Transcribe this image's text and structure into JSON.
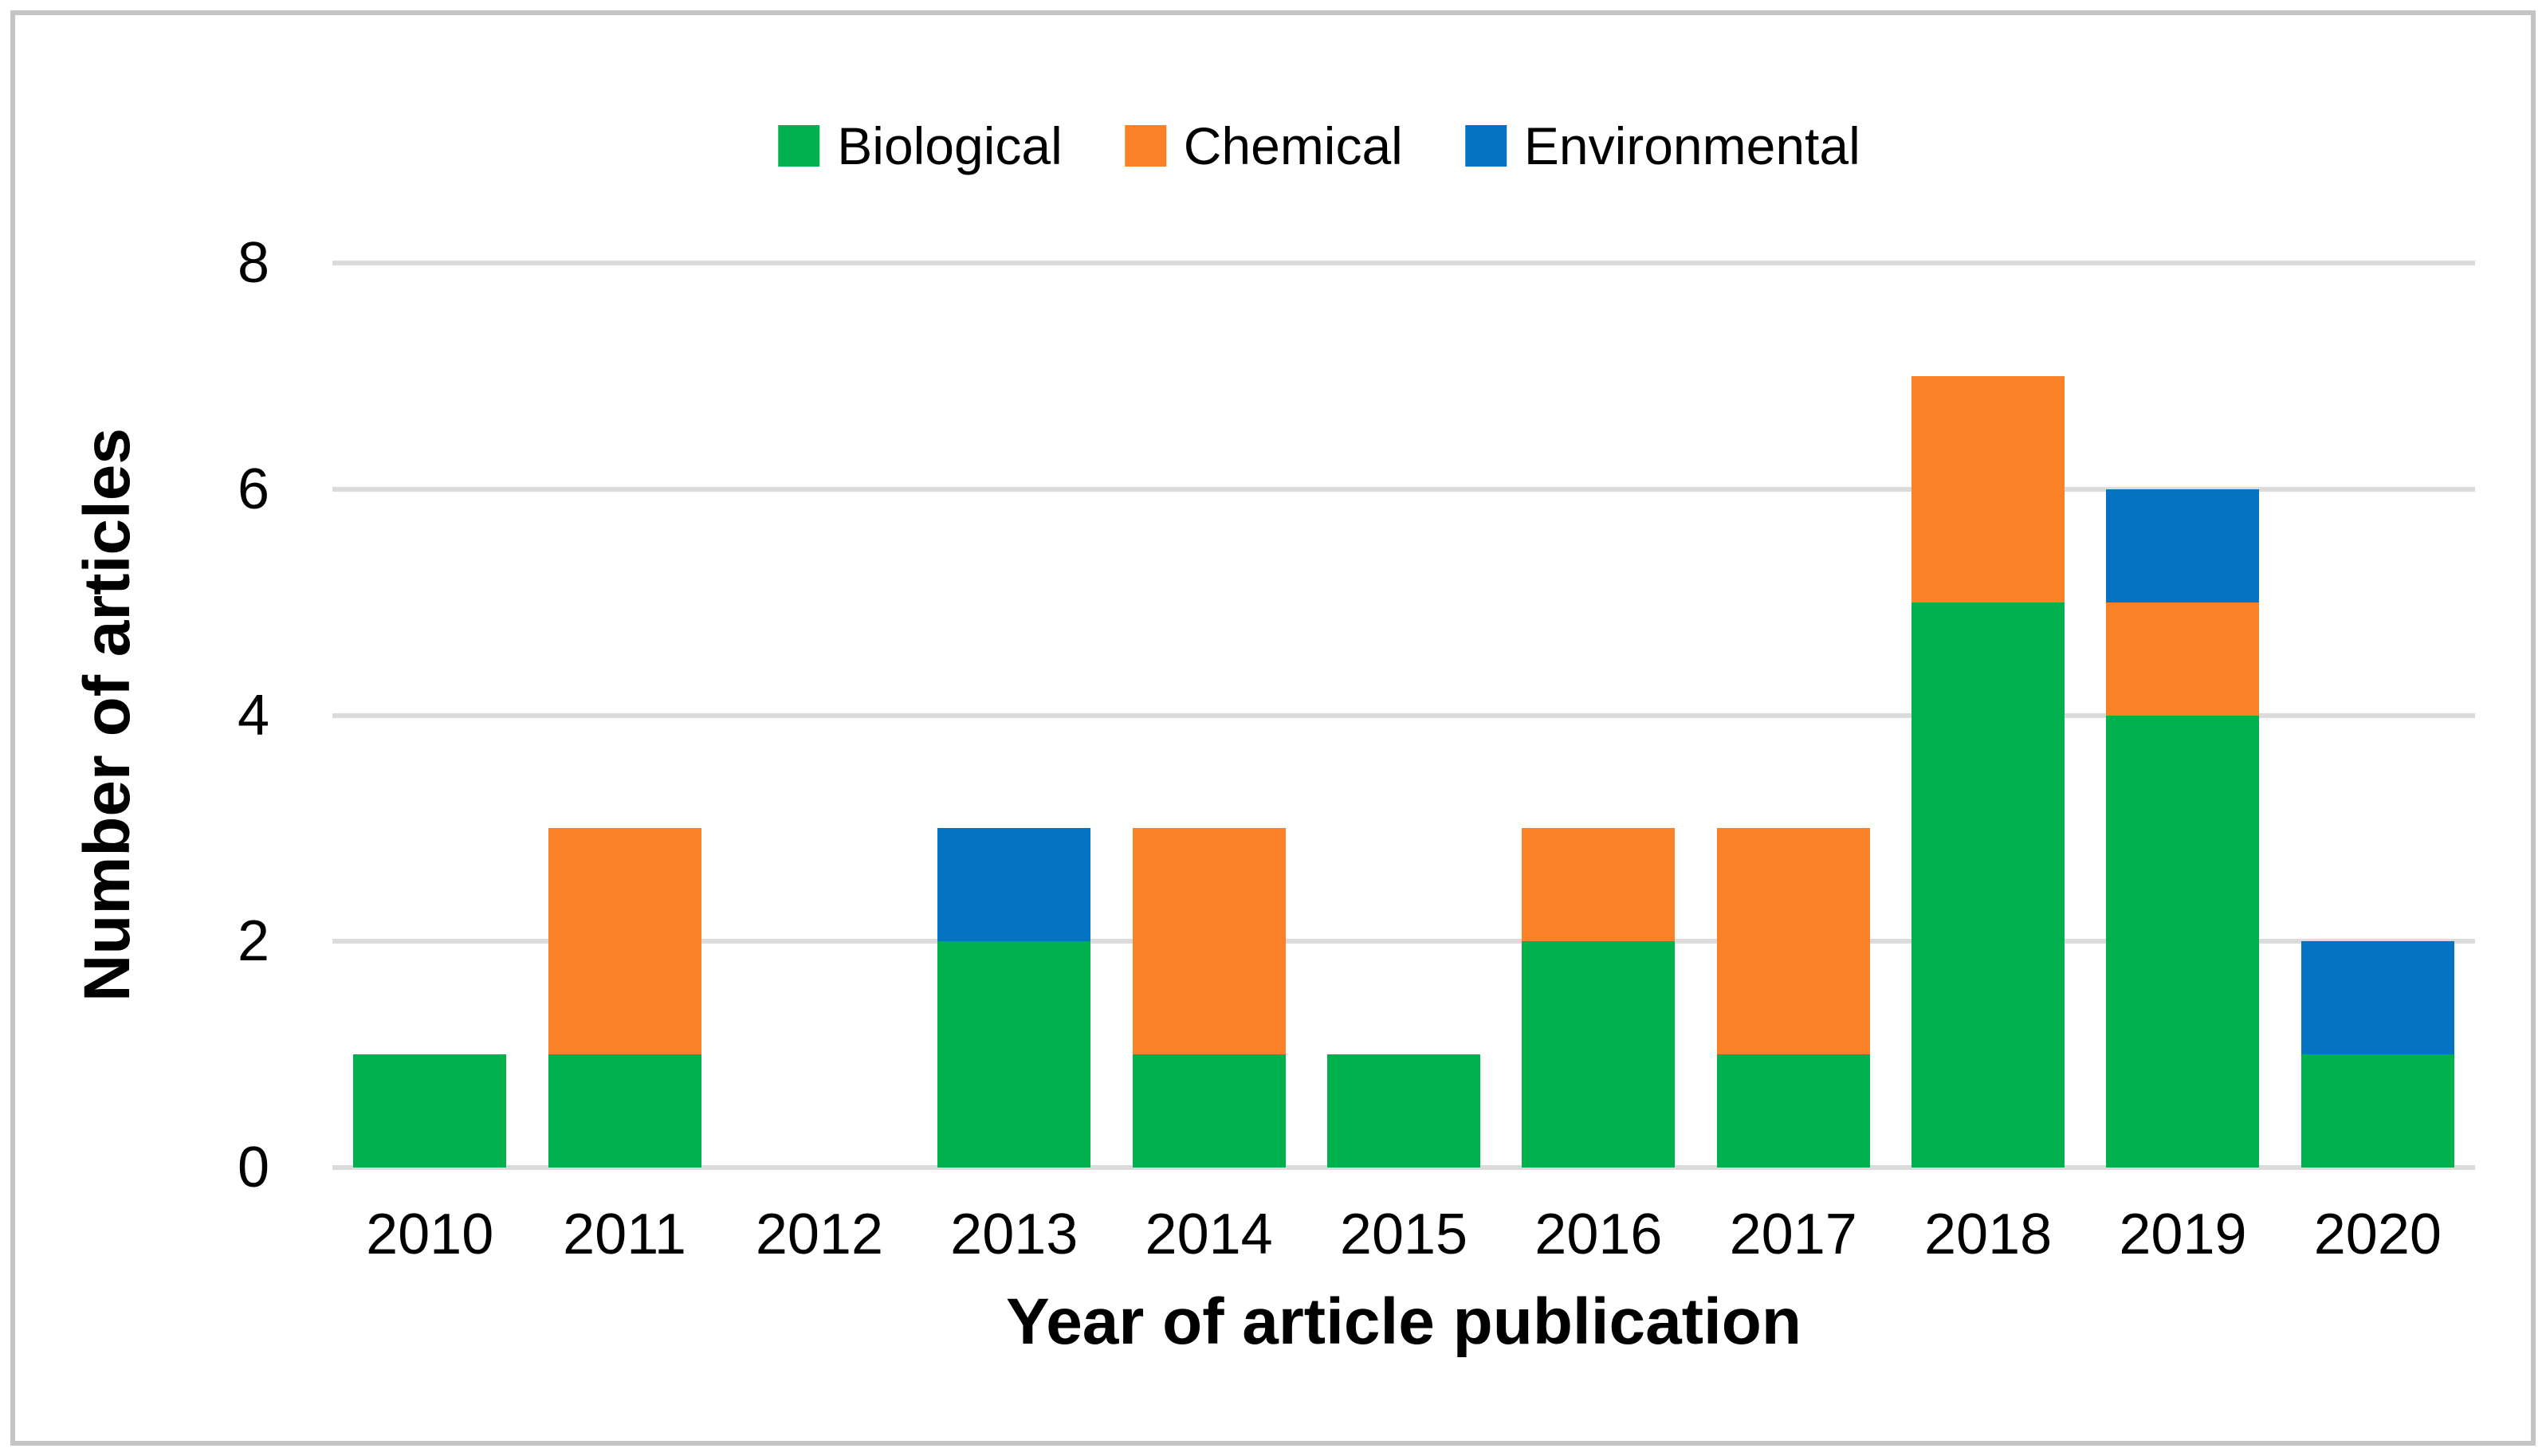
{
  "figure": {
    "background_color": "#ffffff",
    "border_color": "#c4c4c4"
  },
  "axes": {
    "x_title": "Year of article publication",
    "y_title": "Number of articles"
  },
  "legend": {
    "position": "top",
    "items": [
      {
        "label": "Biological",
        "color": "#00b14d"
      },
      {
        "label": "Chemical",
        "color": "#fa8128"
      },
      {
        "label": "Environmental",
        "color": "#0473c1"
      }
    ]
  },
  "chart_data": {
    "type": "bar",
    "stacked": true,
    "title": "",
    "xlabel": "Year of article publication",
    "ylabel": "Number of articles",
    "categories": [
      "2010",
      "2011",
      "2012",
      "2013",
      "2014",
      "2015",
      "2016",
      "2017",
      "2018",
      "2019",
      "2020"
    ],
    "series": [
      {
        "name": "Biological",
        "color": "#00b14d",
        "values": [
          1,
          1,
          0,
          2,
          1,
          1,
          2,
          1,
          5,
          4,
          1
        ]
      },
      {
        "name": "Chemical",
        "color": "#fa8128",
        "values": [
          0,
          2,
          0,
          0,
          2,
          0,
          1,
          2,
          2,
          1,
          0
        ]
      },
      {
        "name": "Environmental",
        "color": "#0473c1",
        "values": [
          0,
          0,
          0,
          1,
          0,
          0,
          0,
          0,
          0,
          1,
          1
        ]
      }
    ],
    "ylim": [
      0,
      8
    ],
    "yticks": [
      0,
      2,
      4,
      6,
      8
    ],
    "grid": "horizontal",
    "gridline_color": "#dbdbdb",
    "legend_position": "top"
  }
}
